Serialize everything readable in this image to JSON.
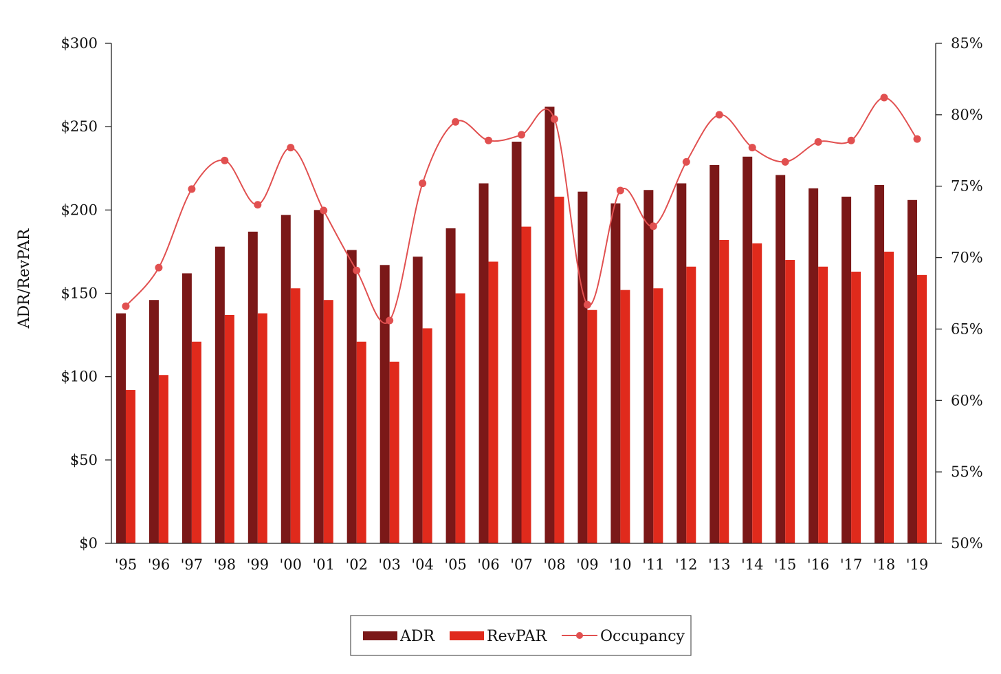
{
  "chart_data": {
    "type": "bar",
    "categories": [
      "'95",
      "'96",
      "'97",
      "'98",
      "'99",
      "'00",
      "'01",
      "'02",
      "'03",
      "'04",
      "'05",
      "'06",
      "'07",
      "'08",
      "'09",
      "'10",
      "'11",
      "'12",
      "'13",
      "'14",
      "'15",
      "'16",
      "'17",
      "'18",
      "'19"
    ],
    "series": [
      {
        "name": "ADR",
        "kind": "bar",
        "axis": "left",
        "color": "#7b1818",
        "values": [
          138,
          146,
          162,
          178,
          187,
          197,
          200,
          176,
          167,
          172,
          189,
          216,
          241,
          262,
          211,
          204,
          212,
          216,
          227,
          232,
          221,
          213,
          208,
          215,
          206
        ]
      },
      {
        "name": "RevPAR",
        "kind": "bar",
        "axis": "left",
        "color": "#e02a1c",
        "values": [
          92,
          101,
          121,
          137,
          138,
          153,
          146,
          121,
          109,
          129,
          150,
          169,
          190,
          208,
          140,
          152,
          153,
          166,
          182,
          180,
          170,
          166,
          163,
          175,
          161
        ]
      },
      {
        "name": "Occupancy",
        "kind": "line",
        "axis": "right",
        "color": "#e15050",
        "values": [
          66.6,
          69.3,
          74.8,
          76.8,
          73.7,
          77.7,
          73.3,
          69.1,
          65.6,
          75.2,
          79.5,
          78.2,
          78.6,
          79.7,
          66.7,
          74.7,
          72.2,
          76.7,
          80.0,
          77.7,
          76.7,
          78.1,
          78.2,
          81.2,
          78.3
        ]
      }
    ],
    "ylabel": "ADR/RevPAR",
    "ylim": [
      0,
      300
    ],
    "yticks": [
      "$0",
      "$50",
      "$100",
      "$150",
      "$200",
      "$250",
      "$300"
    ],
    "y2lim": [
      50,
      85
    ],
    "y2ticks": [
      "50%",
      "55%",
      "60%",
      "65%",
      "70%",
      "75%",
      "80%",
      "85%"
    ],
    "grid": false,
    "legend_position": "bottom-center"
  }
}
